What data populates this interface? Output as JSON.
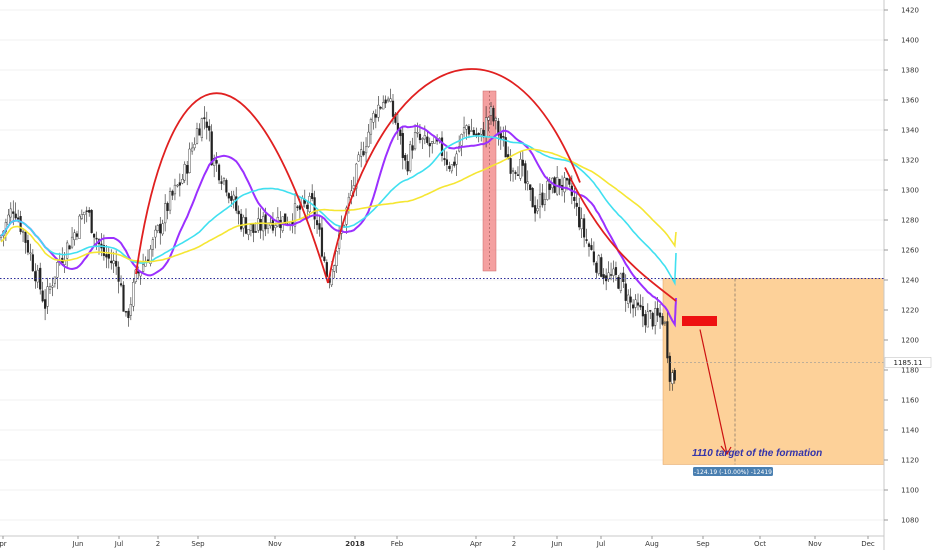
{
  "chart_data": {
    "type": "candlestick",
    "y_axis": {
      "ticks": [
        1080,
        1100,
        1120,
        1140,
        1160,
        1180,
        1200,
        1220,
        1240,
        1260,
        1280,
        1300,
        1320,
        1340,
        1360,
        1380,
        1400,
        1420
      ],
      "range": [
        1073,
        1427
      ],
      "position": "right"
    },
    "x_axis": {
      "labels": [
        "pr",
        "Jun",
        "Jul",
        "2",
        "Sep",
        "Nov",
        "2018",
        "Feb",
        "Apr",
        "2",
        "Jun",
        "Jul",
        "Aug",
        "Sep",
        "Oct",
        "Nov",
        "Dec"
      ]
    },
    "current_price": "1185.11",
    "neckline": 1241,
    "annotation": "1110 target of the formation",
    "measure_badge": "-124.19 (-10.00%) -12419",
    "target_box": {
      "top": 1241,
      "bottom": 1117
    },
    "highlight_band": {
      "from_price": 1246,
      "to_price": 1366
    },
    "series": [
      {
        "name": "",
        "color": "#9b30ff"
      },
      {
        "name": "",
        "color": "#40e0f0"
      },
      {
        "name": "",
        "color": "#f5e633"
      }
    ],
    "arcs_color": "#e02020",
    "box_color": "#fdd199"
  }
}
